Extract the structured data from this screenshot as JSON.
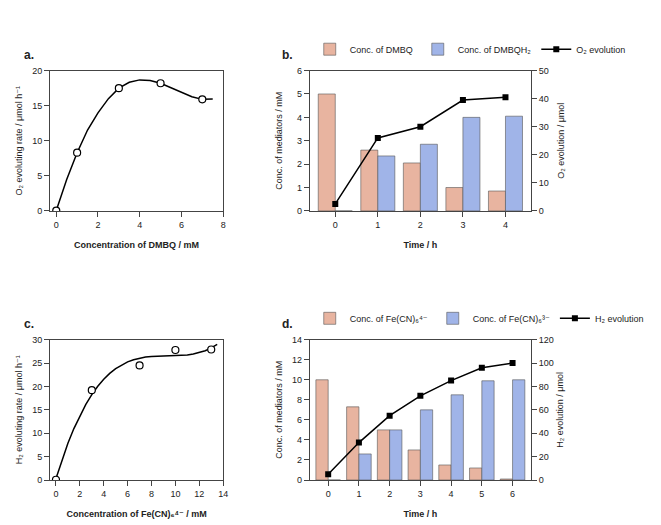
{
  "chart_data": [
    {
      "type": "scatter",
      "title": "a.",
      "xlabel": "Concentration of DMBQ / mM",
      "ylabel": "O₂ evoluting rate / μmol h⁻¹",
      "xlim": [
        -0.3,
        8
      ],
      "xticks": [
        0,
        2,
        4,
        6,
        8
      ],
      "ylim": [
        0,
        20
      ],
      "yticks": [
        0,
        5,
        10,
        15,
        20
      ],
      "grid": false,
      "series": [
        {
          "type": "line",
          "line_style": "solid",
          "color": "#000000",
          "x": [
            0,
            0.5,
            1,
            1.5,
            2,
            2.5,
            3,
            3.5,
            4,
            4.5,
            5,
            5.5,
            6,
            6.5,
            7,
            7.5
          ],
          "values": [
            0.05,
            4.465,
            8.3,
            11.525,
            13.983,
            15.999,
            17.5,
            18.336,
            18.676,
            18.6,
            18.2,
            17.59,
            16.902,
            16.283,
            15.9,
            15.938
          ]
        },
        {
          "type": "scatter",
          "marker": "circle",
          "color": "#000000",
          "x": [
            0,
            1,
            3,
            5,
            7
          ],
          "values": [
            0.05,
            8.3,
            17.5,
            18.2,
            15.9
          ]
        }
      ]
    },
    {
      "type": "bar",
      "title": "b.",
      "xlabel": "Time / h",
      "ylabel": "Conc. of mediators / mM",
      "y2label": "O₂ evolution / μmol",
      "x": [
        0,
        1,
        2,
        3,
        4
      ],
      "xlim": [
        -0.6,
        4.6
      ],
      "xticks": [
        0,
        1,
        2,
        3,
        4
      ],
      "ylim": [
        0,
        6
      ],
      "yticks": [
        0,
        1,
        2,
        3,
        4,
        5,
        6
      ],
      "y2lim": [
        0,
        50
      ],
      "y2ticks": [
        0,
        10,
        20,
        30,
        40,
        50
      ],
      "grid": false,
      "legend": "top",
      "series": [
        {
          "name": "Conc. of DMBQ",
          "color": "#e8b4a0",
          "values": [
            5.0,
            2.6,
            2.05,
            1.0,
            0.85
          ]
        },
        {
          "name": "Conc. of DMBQH₂",
          "color": "#a0b4e8",
          "values": [
            0.0,
            2.35,
            2.85,
            4.0,
            4.05
          ]
        },
        {
          "name": "O₂ evolution",
          "type": "line",
          "axis": "y2",
          "color": "#000000",
          "marker": "square",
          "line_style": "solid",
          "x": [
            0,
            1,
            2,
            3,
            4
          ],
          "values": [
            2.5,
            26,
            30,
            39.5,
            40.5
          ]
        }
      ]
    },
    {
      "type": "scatter",
      "title": "c.",
      "xlabel": "Concentration of Fe(CN)₆⁴⁻ / mM",
      "ylabel": "H₂ evoluting rate / μmol h⁻¹",
      "xlim": [
        -0.5,
        14
      ],
      "xticks": [
        0,
        2,
        4,
        6,
        8,
        10,
        12,
        14
      ],
      "ylim": [
        0,
        30
      ],
      "yticks": [
        0,
        5,
        10,
        15,
        20,
        25,
        30
      ],
      "grid": false,
      "series": [
        {
          "type": "line",
          "line_style": "solid",
          "color": "#000000",
          "x": [
            0,
            0.5,
            1,
            1.5,
            2,
            2.5,
            3,
            3.5,
            4,
            4.5,
            5,
            5.5,
            6,
            6.5,
            7,
            7.5,
            8,
            8.5,
            9,
            9.5,
            10,
            10.5,
            11,
            11.5,
            12,
            12.5,
            13,
            13.5
          ],
          "values": [
            0.338,
            4.305,
            7.849,
            10.993,
            13.761,
            16.177,
            18.265,
            20.05,
            21.555,
            22.804,
            23.822,
            24.632,
            25.259,
            25.726,
            26.058,
            26.279,
            26.412,
            26.482,
            26.513,
            26.529,
            26.554,
            26.611,
            26.726,
            26.922,
            27.222,
            27.652,
            28.236,
            28.996
          ]
        },
        {
          "type": "scatter",
          "marker": "circle",
          "color": "#000000",
          "x": [
            0,
            3,
            7,
            10,
            13
          ],
          "values": [
            0.05,
            19.2,
            24.5,
            27.8,
            27.9
          ]
        }
      ]
    },
    {
      "type": "bar",
      "title": "d.",
      "xlabel": "Time / h",
      "ylabel": "Conc. of mediators / mM",
      "y2label": "H₂ evolution / μmol",
      "x": [
        0,
        1,
        2,
        3,
        4,
        5,
        6
      ],
      "xlim": [
        -0.6,
        6.6
      ],
      "xticks": [
        0,
        1,
        2,
        3,
        4,
        5,
        6
      ],
      "ylim": [
        0,
        14
      ],
      "yticks": [
        0,
        2,
        4,
        6,
        8,
        10,
        12,
        14
      ],
      "y2lim": [
        0,
        120
      ],
      "y2ticks": [
        0,
        20,
        40,
        60,
        80,
        100,
        120
      ],
      "grid": false,
      "legend": "top",
      "series": [
        {
          "name": "Conc. of Fe(CN)₆⁴⁻",
          "color": "#e8b4a0",
          "values": [
            10.0,
            7.3,
            5.0,
            3.0,
            1.5,
            1.2,
            0.1
          ]
        },
        {
          "name": "Conc. of Fe(CN)₆³⁻",
          "color": "#a0b4e8",
          "values": [
            0.0,
            2.6,
            5.0,
            7.0,
            8.5,
            9.9,
            10.0
          ]
        },
        {
          "name": "H₂ evolution",
          "type": "line",
          "axis": "y2",
          "color": "#000000",
          "marker": "square",
          "line_style": "solid",
          "x": [
            0,
            1,
            2,
            3,
            4,
            5,
            6
          ],
          "values": [
            5,
            32,
            55,
            72,
            85,
            96,
            100
          ]
        }
      ]
    }
  ]
}
